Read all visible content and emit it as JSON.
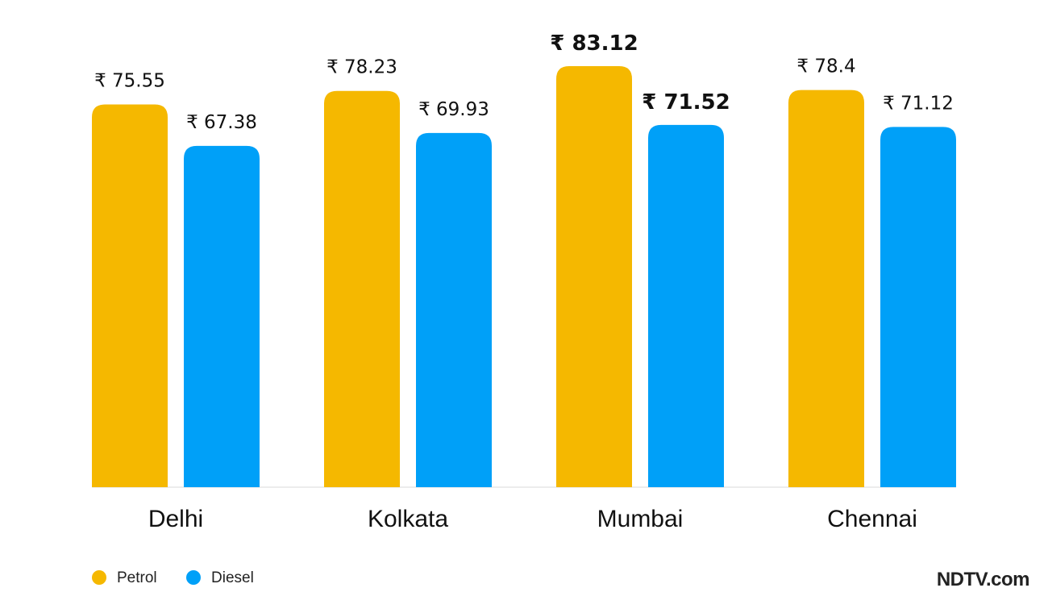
{
  "chart_data": {
    "type": "bar",
    "categories": [
      "Delhi",
      "Kolkata",
      "Mumbai",
      "Chennai"
    ],
    "series": [
      {
        "name": "Petrol",
        "color": "#F5B800",
        "values": [
          75.55,
          78.23,
          83.12,
          78.4
        ],
        "labels": [
          "₹ 75.55",
          "₹ 78.23",
          "₹ 83.12",
          "₹ 78.4"
        ],
        "highlight": [
          false,
          false,
          true,
          false
        ]
      },
      {
        "name": "Diesel",
        "color": "#00A0F8",
        "values": [
          67.38,
          69.93,
          71.52,
          71.12
        ],
        "labels": [
          "₹ 67.38",
          "₹ 69.93",
          "₹ 71.52",
          "₹ 71.12"
        ],
        "highlight": [
          false,
          false,
          true,
          false
        ]
      }
    ],
    "ylim": [
      0,
      83.12
    ],
    "grid": false,
    "legend": "bottom-left",
    "title": "",
    "xlabel": "",
    "ylabel": ""
  },
  "brand": {
    "text": "NDTV.com"
  },
  "colors": {
    "label": "#111111",
    "axis": "#E5E5E5"
  }
}
